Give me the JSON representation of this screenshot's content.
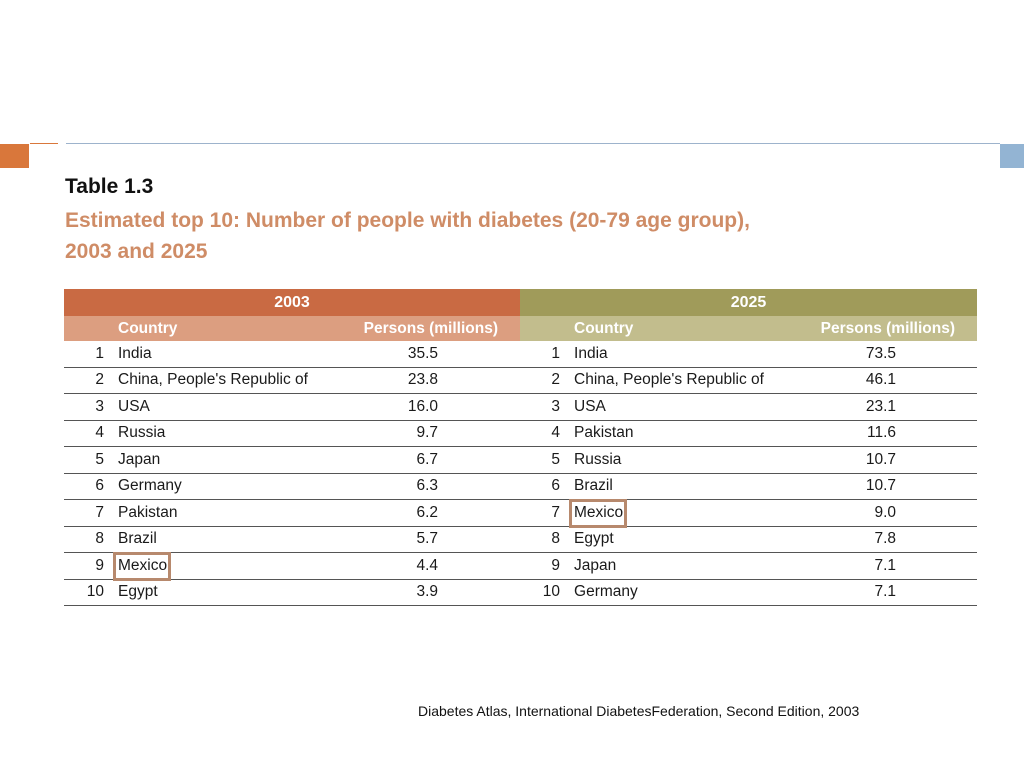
{
  "table": {
    "title": "Table 1.3",
    "caption_line1": "Estimated top 10: Number of people with diabetes (20-79 age group),",
    "caption_line2": "2003 and 2025",
    "year_left": "2003",
    "year_right": "2025",
    "col_country": "Country",
    "col_persons": "Persons (millions)",
    "colors": {
      "header_2003": "#c96a43",
      "subheader_2003": "#dc9e80",
      "header_2025": "#a09b5a",
      "subheader_2025": "#c2bd8d",
      "caption": "#cf8c66",
      "highlight_box": "#b7896d"
    },
    "rows": [
      {
        "rank_2003": "1",
        "country_2003": "India",
        "persons_2003": "35.5",
        "rank_2025": "1",
        "country_2025": "India",
        "persons_2025": "73.5"
      },
      {
        "rank_2003": "2",
        "country_2003": "China, People's Republic of",
        "persons_2003": "23.8",
        "rank_2025": "2",
        "country_2025": "China, People's Republic of",
        "persons_2025": "46.1"
      },
      {
        "rank_2003": "3",
        "country_2003": "USA",
        "persons_2003": "16.0",
        "rank_2025": "3",
        "country_2025": "USA",
        "persons_2025": "23.1"
      },
      {
        "rank_2003": "4",
        "country_2003": "Russia",
        "persons_2003": "9.7",
        "rank_2025": "4",
        "country_2025": "Pakistan",
        "persons_2025": "11.6"
      },
      {
        "rank_2003": "5",
        "country_2003": "Japan",
        "persons_2003": "6.7",
        "rank_2025": "5",
        "country_2025": "Russia",
        "persons_2025": "10.7"
      },
      {
        "rank_2003": "6",
        "country_2003": "Germany",
        "persons_2003": "6.3",
        "rank_2025": "6",
        "country_2025": "Brazil",
        "persons_2025": "10.7"
      },
      {
        "rank_2003": "7",
        "country_2003": "Pakistan",
        "persons_2003": "6.2",
        "rank_2025": "7",
        "country_2025": "Mexico",
        "persons_2025": "9.0"
      },
      {
        "rank_2003": "8",
        "country_2003": "Brazil",
        "persons_2003": "5.7",
        "rank_2025": "8",
        "country_2025": "Egypt",
        "persons_2025": "7.8"
      },
      {
        "rank_2003": "9",
        "country_2003": "Mexico",
        "persons_2003": "4.4",
        "rank_2025": "9",
        "country_2025": "Japan",
        "persons_2025": "7.1"
      },
      {
        "rank_2003": "10",
        "country_2003": "Egypt",
        "persons_2003": "3.9",
        "rank_2025": "10",
        "country_2025": "Germany",
        "persons_2025": "7.1"
      }
    ]
  },
  "source": "Diabetes Atlas, International  DiabetesFederation, Second Edition, 2003"
}
